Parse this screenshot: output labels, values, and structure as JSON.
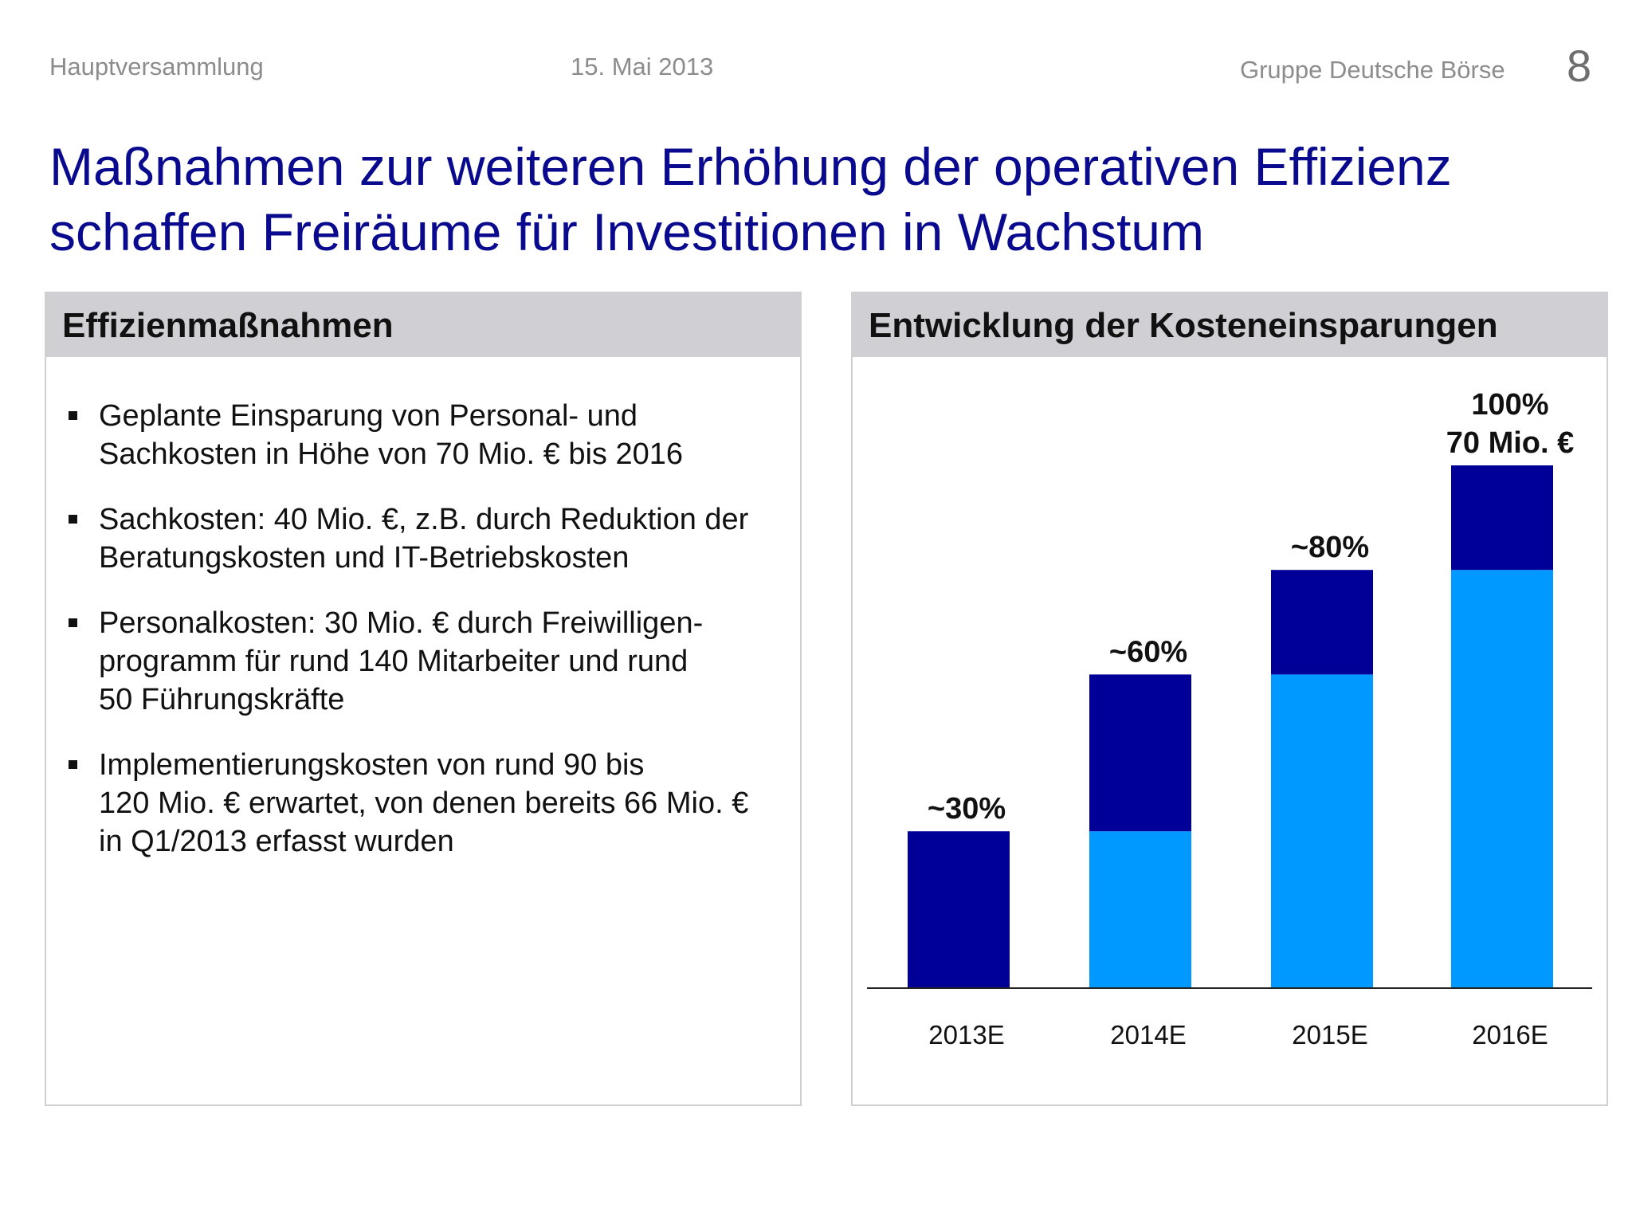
{
  "header": {
    "left": "Hauptversammlung",
    "date": "15. Mai 2013",
    "company": "Gruppe Deutsche Börse",
    "page": "8"
  },
  "title": {
    "line1": "Maßnahmen zur weiteren Erhöhung der operativen Effizienz",
    "line2": "schaffen Freiräume für Investitionen in Wachstum"
  },
  "left_panel": {
    "heading": "Effizienmaßnahmen",
    "bullets": [
      [
        "Geplante Einsparung von Personal- und",
        "Sachkosten in Höhe von 70 Mio. € bis 2016"
      ],
      [
        "Sachkosten: 40 Mio. €, z.B. durch Reduktion der",
        "Beratungskosten und IT-Betriebskosten"
      ],
      [
        "Personalkosten: 30 Mio. € durch Freiwilligen-",
        "programm für rund 140 Mitarbeiter und rund",
        "50 Führungskräfte"
      ],
      [
        "Implementierungskosten von rund 90 bis",
        "120 Mio. € erwartet, von denen bereits 66 Mio. €",
        "in Q1/2013 erfasst wurden"
      ]
    ]
  },
  "right_panel": {
    "heading": "Entwicklung der Kosteneinsparungen"
  },
  "chart_data": {
    "type": "bar",
    "stacked": true,
    "categories": [
      "2013E",
      "2014E",
      "2015E",
      "2016E"
    ],
    "series": [
      {
        "color": "#0099ff",
        "values": [
          0,
          30,
          60,
          80
        ]
      },
      {
        "color": "#000099",
        "values": [
          30,
          30,
          20,
          20
        ]
      }
    ],
    "bar_labels": [
      [
        "~30%"
      ],
      [
        "~60%"
      ],
      [
        "~80%"
      ],
      [
        "100%",
        "70 Mio. €"
      ]
    ],
    "ylim": [
      0,
      100
    ],
    "grid": false,
    "xlabel": "",
    "ylabel": ""
  }
}
